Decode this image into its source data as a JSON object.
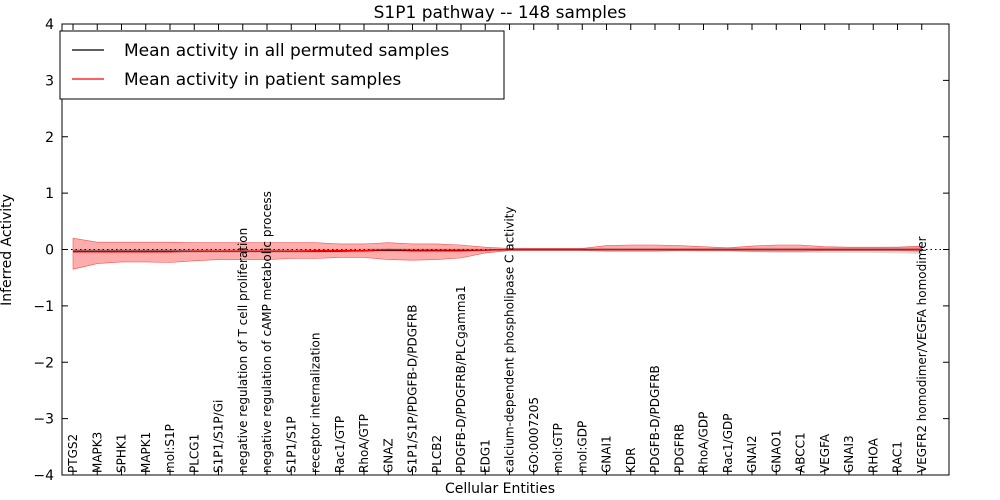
{
  "chart_data": {
    "type": "line",
    "title": "S1P1 pathway -- 148 samples",
    "xlabel": "Cellular Entities",
    "ylabel": "Inferred Activity",
    "ylim": [
      -4,
      4
    ],
    "yticks": [
      -4,
      -3,
      -2,
      -1,
      0,
      1,
      2,
      3,
      4
    ],
    "ytick_labels": [
      "−4",
      "−3",
      "−2",
      "−1",
      "0",
      "1",
      "2",
      "3",
      "4"
    ],
    "grid": false,
    "legend_position": "top-left",
    "categories": [
      "PTGS2",
      "MAPK3",
      "SPHK1",
      "MAPK1",
      "mol:S1P",
      "PLCG1",
      "S1P1/S1P/Gi",
      "negative regulation of T cell proliferation",
      "negative regulation of cAMP metabolic process",
      "S1P1/S1P",
      "receptor internalization",
      "Rac1/GTP",
      "RhoA/GTP",
      "GNAZ",
      "S1P1/S1P/PDGFB-D/PDGFRB",
      "PLCB2",
      "PDGFB-D/PDGFRB/PLCgamma1",
      "EDG1",
      "calcium-dependent phospholipase C activity",
      "GO:0007205",
      "mol:GTP",
      "mol:GDP",
      "GNAI1",
      "KDR",
      "PDGFB-D/PDGFRB",
      "PDGFRB",
      "RhoA/GDP",
      "Rac1/GDP",
      "GNAI2",
      "GNAO1",
      "ABCC1",
      "VEGFA",
      "GNAI3",
      "RHOA",
      "RAC1",
      "VEGFR2 homodimer/VEGFA homodimer"
    ],
    "series": [
      {
        "name": "Mean activity in all permuted samples",
        "color": "#000000",
        "values": [
          -0.03,
          -0.03,
          -0.03,
          -0.03,
          -0.03,
          -0.03,
          -0.03,
          -0.03,
          -0.03,
          -0.03,
          -0.03,
          -0.03,
          -0.02,
          -0.01,
          -0.02,
          -0.02,
          -0.02,
          -0.01,
          0.0,
          0.0,
          0.0,
          0.0,
          0.0,
          0.0,
          0.0,
          0.0,
          0.0,
          0.0,
          0.0,
          0.0,
          0.0,
          0.0,
          0.0,
          0.0,
          0.0,
          0.0
        ],
        "band_lower": [
          -0.06,
          -0.06,
          -0.06,
          -0.06,
          -0.06,
          -0.06,
          -0.06,
          -0.06,
          -0.06,
          -0.06,
          -0.06,
          -0.05,
          -0.05,
          -0.05,
          -0.05,
          -0.05,
          -0.05,
          -0.03,
          -0.02,
          -0.02,
          -0.02,
          -0.02,
          -0.03,
          -0.03,
          -0.03,
          -0.03,
          -0.04,
          -0.04,
          -0.05,
          -0.06,
          -0.06,
          -0.06,
          -0.06,
          -0.06,
          -0.07,
          -0.08
        ],
        "band_upper": [
          0.01,
          0.01,
          0.01,
          0.01,
          0.01,
          0.01,
          0.01,
          0.01,
          0.01,
          0.01,
          0.01,
          0.01,
          0.02,
          0.02,
          0.02,
          0.02,
          0.02,
          0.02,
          0.02,
          0.02,
          0.02,
          0.02,
          0.02,
          0.02,
          0.02,
          0.02,
          0.02,
          0.03,
          0.03,
          0.03,
          0.03,
          0.04,
          0.04,
          0.04,
          0.05,
          0.06
        ]
      },
      {
        "name": "Mean activity in patient samples",
        "color": "#ff0000",
        "values": [
          -0.04,
          -0.04,
          -0.04,
          -0.04,
          -0.04,
          -0.03,
          -0.03,
          -0.03,
          -0.03,
          -0.03,
          -0.02,
          -0.02,
          -0.02,
          0.0,
          -0.01,
          -0.01,
          -0.01,
          -0.01,
          0.0,
          0.0,
          0.0,
          0.0,
          0.0,
          0.0,
          0.0,
          0.0,
          0.0,
          0.0,
          0.0,
          0.0,
          0.0,
          0.0,
          0.0,
          0.0,
          0.0,
          0.0
        ],
        "band_lower": [
          -0.35,
          -0.25,
          -0.22,
          -0.22,
          -0.23,
          -0.2,
          -0.18,
          -0.18,
          -0.18,
          -0.16,
          -0.16,
          -0.14,
          -0.14,
          -0.18,
          -0.19,
          -0.18,
          -0.15,
          -0.06,
          -0.02,
          -0.02,
          -0.02,
          -0.02,
          -0.03,
          -0.03,
          -0.03,
          -0.02,
          -0.02,
          -0.02,
          -0.03,
          -0.03,
          -0.03,
          -0.02,
          -0.02,
          -0.02,
          -0.02,
          -0.03
        ],
        "band_upper": [
          0.2,
          0.13,
          0.13,
          0.13,
          0.13,
          0.12,
          0.12,
          0.12,
          0.12,
          0.12,
          0.12,
          0.1,
          0.1,
          0.12,
          0.1,
          0.1,
          0.08,
          0.04,
          0.02,
          0.02,
          0.02,
          0.02,
          0.07,
          0.08,
          0.08,
          0.07,
          0.05,
          0.03,
          0.06,
          0.08,
          0.08,
          0.05,
          0.04,
          0.04,
          0.04,
          0.06
        ]
      }
    ]
  }
}
